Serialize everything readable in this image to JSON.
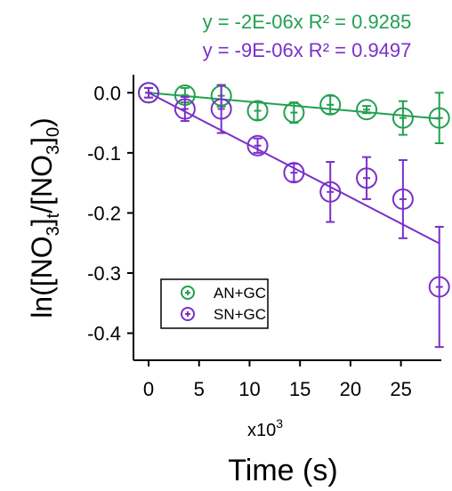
{
  "chart_data": {
    "type": "scatter",
    "title": "",
    "xlabel": "Time (s)",
    "x_multiplier_label": "x10",
    "x_multiplier_exp": "3",
    "ylabel": {
      "prefix": "ln([NO",
      "sub1": "3",
      "mid1": "]",
      "sub2": "t",
      "mid2": "/[NO",
      "sub3": "3",
      "mid3": "]",
      "sub4": "0",
      "suffix": ")"
    },
    "xlim": [
      -1.5,
      29
    ],
    "ylim": [
      -0.445,
      0.03
    ],
    "x_ticks": [
      0,
      5,
      10,
      15,
      20,
      25
    ],
    "x_tick_labels": [
      "0",
      "5",
      "10",
      "15",
      "20",
      "25"
    ],
    "y_ticks": [
      0.0,
      -0.1,
      -0.2,
      -0.3,
      -0.4
    ],
    "y_tick_labels": [
      "0.0",
      "-0.1",
      "-0.2",
      "-0.3",
      "-0.4"
    ],
    "grid": false,
    "legend_position": "bottom-left",
    "series": [
      {
        "name": "AN+GC",
        "color": "#22a050",
        "equation": "y = -2E-06x  R² = 0.9285",
        "slope_per_1e3s": -0.0015,
        "fit_x_range": [
          0,
          28.8
        ],
        "x": [
          0,
          3.6,
          7.2,
          10.8,
          14.4,
          18.0,
          21.6,
          25.2,
          28.8
        ],
        "y": [
          0.0,
          -0.004,
          -0.005,
          -0.03,
          -0.033,
          -0.02,
          -0.028,
          -0.042,
          -0.042
        ],
        "err": [
          0.008,
          0.012,
          0.018,
          0.015,
          0.017,
          0.015,
          0.006,
          0.028,
          0.042
        ]
      },
      {
        "name": "SN+GC",
        "color": "#7b2fc9",
        "equation": "y = -9E-06x  R² = 0.9497",
        "slope_per_1e3s": -0.0087,
        "fit_x_range": [
          0,
          28.8
        ],
        "x": [
          0,
          3.6,
          7.2,
          10.8,
          14.4,
          18.0,
          21.6,
          25.2,
          28.8
        ],
        "y": [
          0.0,
          -0.027,
          -0.027,
          -0.088,
          -0.133,
          -0.165,
          -0.142,
          -0.177,
          -0.323
        ],
        "err": [
          0.008,
          0.02,
          0.04,
          0.012,
          0.015,
          0.05,
          0.035,
          0.065,
          0.1
        ]
      }
    ]
  }
}
